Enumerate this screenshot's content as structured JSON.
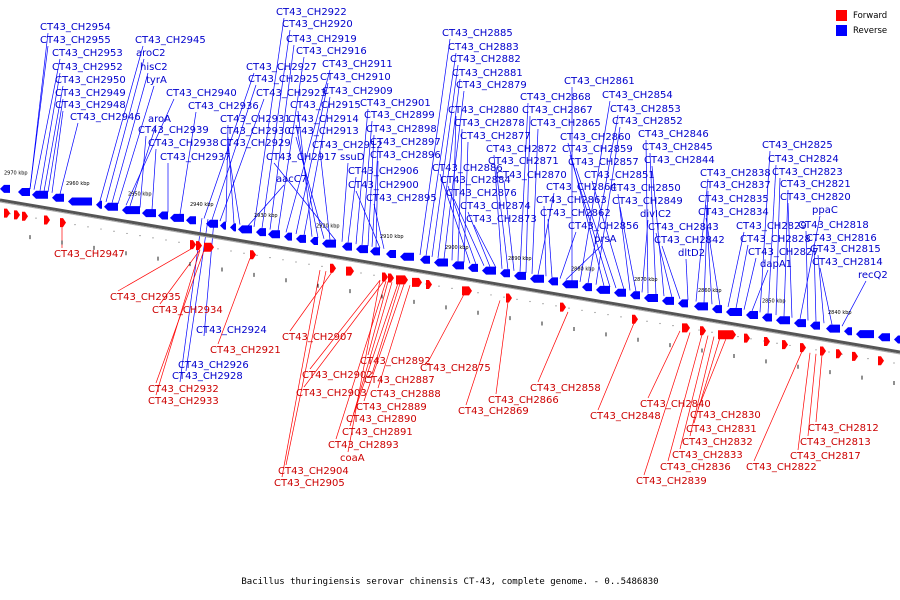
{
  "legend": {
    "forward_label": "Forward",
    "reverse_label": "Reverse",
    "forward_color": "#ff0000",
    "reverse_color": "#0000ff"
  },
  "caption": "Bacillus thuringiensis serovar chinensis CT-43, complete genome. - 0..5486830",
  "ticks": [
    "2970 kbp",
    "2960 kbp",
    "2950 kbp",
    "2940 kbp",
    "2930 kbp",
    "2920 kbp",
    "2910 kbp",
    "2900 kbp",
    "2890 kbp",
    "2880 kbp",
    "2870 kbp",
    "2860 kbp",
    "2850 kbp",
    "2840 kbp"
  ],
  "reverse_labels": [
    "CT43_CH2954",
    "CT43_CH2955",
    "CT43_CH2953",
    "CT43_CH2952",
    "CT43_CH2950",
    "CT43_CH2949",
    "CT43_CH2948",
    "CT43_CH2946",
    "CT43_CH2945",
    "aroC2",
    "hisC2",
    "tyrA",
    "CT43_CH2940",
    "aroA",
    "CT43_CH2939",
    "CT43_CH2938",
    "CT43_CH2937",
    "CT43_CH2936",
    "CT43_CH2927",
    "CT43_CH2925",
    "CT43_CH2923",
    "CT43_CH2931",
    "CT43_CH2930",
    "CT43_CH2929",
    "aacC7",
    "CT43_CH2922",
    "CT43_CH2920",
    "CT43_CH2919",
    "CT43_CH2916",
    "CT43_CH2911",
    "CT43_CH2910",
    "CT43_CH2909",
    "CT43_CH2915",
    "CT43_CH2914",
    "CT43_CH2913",
    "CT43_CH2912",
    "CT43_CH2917",
    "ssuD",
    "CT43_CH2906",
    "CT43_CH2901",
    "CT43_CH2899",
    "CT43_CH2898",
    "CT43_CH2897",
    "CT43_CH2896",
    "CT43_CH2900",
    "CT43_CH2895",
    "CT43_CH2885",
    "CT43_CH2883",
    "CT43_CH2882",
    "CT43_CH2881",
    "CT43_CH2879",
    "CT43_CH2880",
    "CT43_CH2878",
    "CT43_CH2877",
    "CT43_CH2886",
    "CT43_CH2884",
    "CT43_CH2876",
    "CT43_CH2874",
    "CT43_CH2873",
    "CT43_CH2872",
    "CT43_CH2871",
    "CT43_CH2870",
    "CT43_CH2868",
    "CT43_CH2867",
    "CT43_CH2865",
    "CT43_CH2864",
    "CT43_CH2863",
    "CT43_CH2862",
    "CT43_CH2856",
    "prsA",
    "CT43_CH2861",
    "CT43_CH2854",
    "CT43_CH2853",
    "CT43_CH2852",
    "CT43_CH2860",
    "CT43_CH2859",
    "CT43_CH2857",
    "CT43_CH2851",
    "CT43_CH2850",
    "CT43_CH2849",
    "divIC2",
    "CT43_CH2846",
    "CT43_CH2845",
    "CT43_CH2844",
    "CT43_CH2843",
    "CT43_CH2842",
    "dltD2",
    "CT43_CH2838",
    "CT43_CH2837",
    "CT43_CH2835",
    "CT43_CH2834",
    "CT43_CH2829",
    "CT43_CH2828",
    "CT43_CH2827",
    "dapA1",
    "CT43_CH2825",
    "CT43_CH2824",
    "CT43_CH2823",
    "CT43_CH2821",
    "CT43_CH2820",
    "ppaC",
    "CT43_CH2818",
    "CT43_CH2816",
    "CT43_CH2815",
    "CT43_CH2814",
    "recQ2",
    "CT43_CH2924",
    "CT43_CH2926",
    "CT43_CH2928"
  ],
  "forward_labels": [
    "CT43_CH2947",
    "CT43_CH2935",
    "CT43_CH2934",
    "CT43_CH2921",
    "CT43_CH2932",
    "CT43_CH2933",
    "CT43_CH2907",
    "CT43_CH2892",
    "CT43_CH2902",
    "CT43_CH2887",
    "CT43_CH2903",
    "CT43_CH2888",
    "CT43_CH2889",
    "CT43_CH2890",
    "CT43_CH2891",
    "CT43_CH2893",
    "coaA",
    "CT43_CH2904",
    "CT43_CH2905",
    "CT43_CH2875",
    "CT43_CH2866",
    "CT43_CH2869",
    "CT43_CH2858",
    "CT43_CH2848",
    "CT43_CH2840",
    "CT43_CH2830",
    "CT43_CH2831",
    "CT43_CH2832",
    "CT43_CH2833",
    "CT43_CH2836",
    "CT43_CH2839",
    "CT43_CH2812",
    "CT43_CH2813",
    "CT43_CH2817",
    "CT43_CH2822"
  ]
}
